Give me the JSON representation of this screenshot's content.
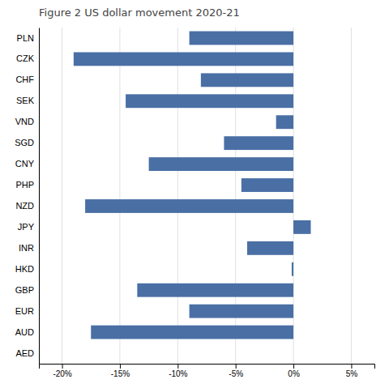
{
  "chart_data": {
    "type": "bar",
    "orientation": "horizontal",
    "title": "Figure 2 US dollar movement 2020-21",
    "categories": [
      "AED",
      "AUD",
      "EUR",
      "GBP",
      "HKD",
      "INR",
      "JPY",
      "NZD",
      "PHP",
      "CNY",
      "SGD",
      "VND",
      "SEK",
      "CHF",
      "CZK",
      "PLN"
    ],
    "values": [
      0.0,
      -17.5,
      -9.0,
      -13.5,
      -0.15,
      -4.0,
      1.5,
      -18.0,
      -4.5,
      -12.5,
      -6.0,
      -1.5,
      -14.5,
      -8.0,
      -19.0,
      -9.0
    ],
    "color": "#4a6fa5",
    "xlim": [
      -22,
      7
    ],
    "xticks": [
      {
        "value": -20,
        "label": "-20%"
      },
      {
        "value": -15,
        "label": "-15%"
      },
      {
        "value": -10,
        "label": "-10%"
      },
      {
        "value": -5,
        "label": "-5%"
      },
      {
        "value": 0,
        "label": "0%"
      },
      {
        "value": 5,
        "label": "5%"
      }
    ],
    "grid": true
  }
}
